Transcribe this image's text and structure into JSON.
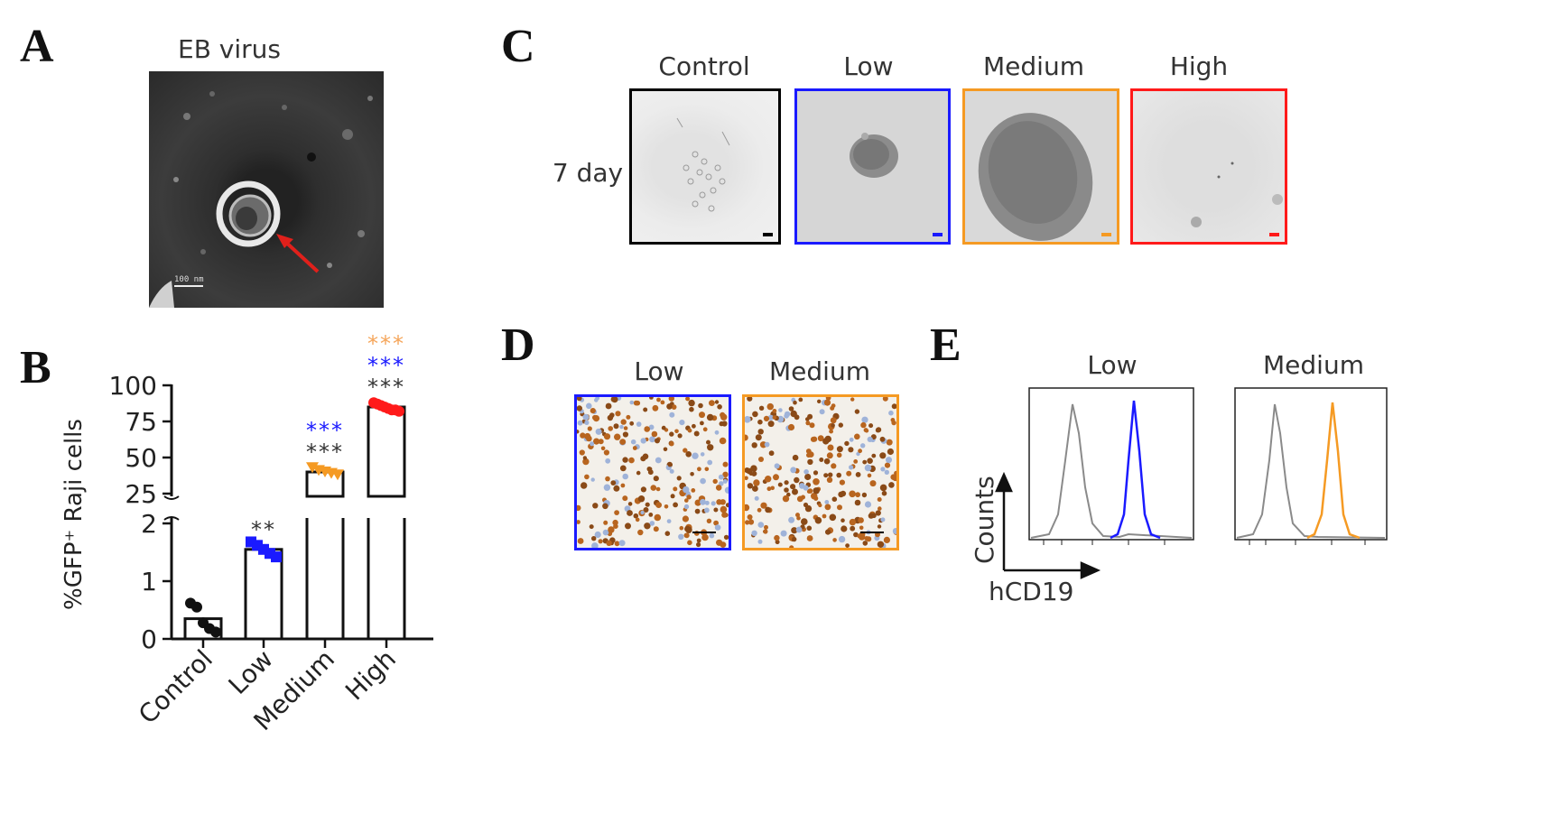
{
  "panels": {
    "A": {
      "letter": "A",
      "title": "EB virus",
      "scale_label": "100 nm",
      "arrow_color": "#e0201b"
    },
    "B": {
      "letter": "B",
      "chart_data": {
        "type": "bar",
        "ylabel": "%GFP⁺ Raji cells",
        "categories": [
          "Control",
          "Low",
          "Medium",
          "High"
        ],
        "values": [
          0.35,
          1.55,
          40,
          85
        ],
        "axis_break": {
          "lower": [
            0,
            2
          ],
          "upper": [
            25,
            100
          ]
        },
        "lower_ticks": [
          "0",
          "1",
          "2"
        ],
        "upper_ticks": [
          "25",
          "50",
          "75",
          "100"
        ],
        "points": [
          [
            0.62,
            0.55,
            0.28,
            0.18,
            0.12
          ],
          [
            1.68,
            1.62,
            1.55,
            1.48,
            1.42
          ],
          [
            43,
            41,
            40,
            39,
            38
          ],
          [
            88,
            87,
            86,
            85,
            84,
            83,
            83,
            82
          ]
        ],
        "point_colors": [
          "#111111",
          "#1a1aff",
          "#f59a23",
          "#ff1a1a"
        ],
        "significance": [
          [],
          [
            {
              "text": "**",
              "color": "#333333"
            }
          ],
          [
            {
              "text": "***",
              "color": "#1a1aff"
            },
            {
              "text": "***",
              "color": "#333333"
            }
          ],
          [
            {
              "text": "***",
              "color": "#f5a55a"
            },
            {
              "text": "***",
              "color": "#1a1aff"
            },
            {
              "text": "***",
              "color": "#333333"
            }
          ]
        ]
      }
    },
    "C": {
      "letter": "C",
      "row_label": "7 day",
      "images": [
        {
          "label": "Control",
          "color": "#000000"
        },
        {
          "label": "Low",
          "color": "#1a1aff"
        },
        {
          "label": "Medium",
          "color": "#f59a23"
        },
        {
          "label": "High",
          "color": "#ff1a1a"
        }
      ]
    },
    "D": {
      "letter": "D",
      "images": [
        {
          "label": "Low",
          "color": "#1a1aff"
        },
        {
          "label": "Medium",
          "color": "#f59a23"
        }
      ]
    },
    "E": {
      "letter": "E",
      "plots": [
        {
          "label": "Low",
          "color": "#1a1aff"
        },
        {
          "label": "Medium",
          "color": "#f59a23"
        }
      ],
      "y_axis_label": "Counts",
      "x_axis_label": "hCD19",
      "control_color": "#8a8a8a"
    }
  }
}
